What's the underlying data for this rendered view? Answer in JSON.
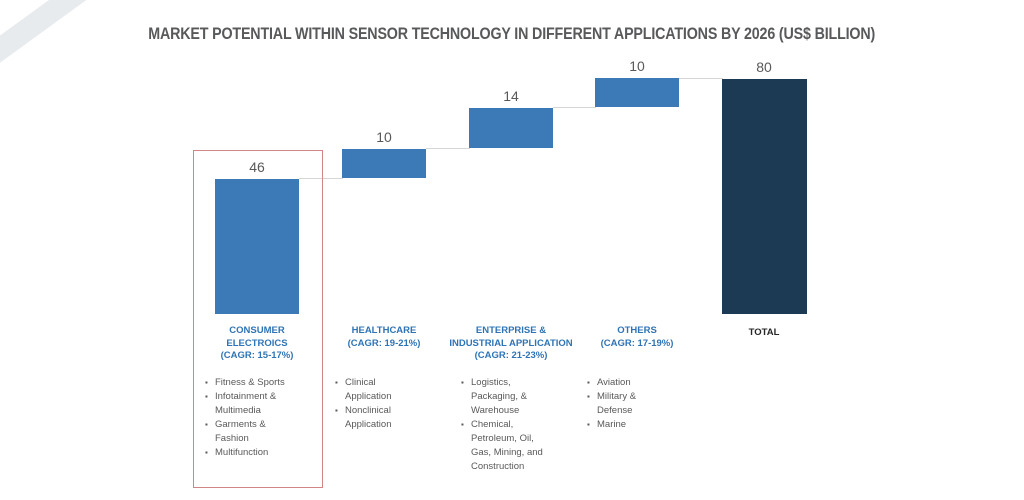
{
  "title": {
    "text": "MARKET POTENTIAL WITHIN SENSOR TECHNOLOGY IN DIFFERENT APPLICATIONS BY 2026 (US$ BILLION)",
    "color": "#58595B"
  },
  "chart_data": {
    "type": "bar",
    "variant": "waterfall",
    "title": "MARKET POTENTIAL WITHIN SENSOR TECHNOLOGY IN DIFFERENT APPLICATIONS BY 2026 (US$ BILLION)",
    "unit": "US$ Billion",
    "categories": [
      "CONSUMER ELECTROICS (CAGR: 15-17%)",
      "HEALTHCARE (CAGR: 19-21%)",
      "ENTERPRISE & INDUSTRIAL APPLICATION (CAGR: 21-23%)",
      "OTHERS (CAGR: 17-19%)",
      "TOTAL"
    ],
    "values": [
      46,
      10,
      14,
      10,
      80
    ],
    "cumulative_base": [
      0,
      46,
      56,
      70,
      0
    ],
    "data_labels": [
      "46",
      "10",
      "14",
      "10",
      "80"
    ],
    "ylim": [
      0,
      80
    ],
    "grid": false,
    "legend": false,
    "bar_color": "#3B79B7",
    "total_bar_color": "#1C3A54",
    "connector_color": "#D6D6D6",
    "label_color": "#2E74B5",
    "value_label_color": "#595959",
    "highlight_box_color": "#CF8684",
    "highlighted_category": "CONSUMER ELECTROICS (CAGR: 15-17%)"
  },
  "bullet_glyph": "▪",
  "columns": [
    {
      "value_label": "46",
      "label_lines": [
        "CONSUMER",
        "ELECTROICS",
        "(CAGR: 15-17%)"
      ],
      "items": [
        "Fitness & Sports",
        "Infotainment & Multimedia",
        "Garments & Fashion",
        "Multifunction"
      ]
    },
    {
      "value_label": "10",
      "label_lines": [
        "HEALTHCARE",
        "(CAGR: 19-21%)"
      ],
      "items": [
        "Clinical Application",
        "Nonclinical Application"
      ]
    },
    {
      "value_label": "14",
      "label_lines": [
        "ENTERPRISE &",
        "INDUSTRIAL APPLICATION",
        "(CAGR: 21-23%)"
      ],
      "items": [
        "Logistics, Packaging, & Warehouse",
        "Chemical, Petroleum, Oil, Gas, Mining, and Construction"
      ]
    },
    {
      "value_label": "10",
      "label_lines": [
        "OTHERS",
        "(CAGR: 17-19%)"
      ],
      "items": [
        "Aviation",
        "Military & Defense",
        "Marine"
      ]
    },
    {
      "value_label": "80",
      "label_lines": [
        "TOTAL"
      ],
      "items": []
    }
  ]
}
